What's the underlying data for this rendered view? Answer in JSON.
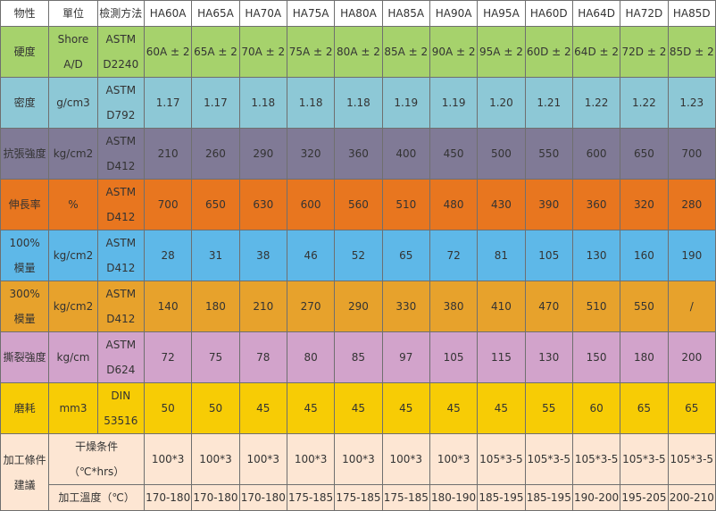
{
  "header": {
    "property": "物性",
    "unit": "單位",
    "method": "檢測方法",
    "grades": [
      "HA60A",
      "HA65A",
      "HA70A",
      "HA75A",
      "HA80A",
      "HA85A",
      "HA90A",
      "HA95A",
      "HA60D",
      "HA64D",
      "HA72D",
      "HA85D"
    ]
  },
  "rows": [
    {
      "property": [
        "硬度"
      ],
      "unit": [
        "Shore",
        "A/D"
      ],
      "method": [
        "ASTM",
        "D2240"
      ],
      "values": [
        "60A ± 2",
        "65A ± 2",
        "70A ± 2",
        "75A ± 2",
        "80A ± 2",
        "85A ± 2",
        "90A ± 2",
        "95A ± 2",
        "60D ± 2",
        "64D ± 2",
        "72D ± 2",
        "85D ± 2"
      ]
    },
    {
      "property": [
        "密度"
      ],
      "unit": [
        "g/cm3"
      ],
      "method": [
        "ASTM",
        "D792"
      ],
      "values": [
        "1.17",
        "1.17",
        "1.18",
        "1.18",
        "1.18",
        "1.19",
        "1.19",
        "1.20",
        "1.21",
        "1.22",
        "1.22",
        "1.23"
      ]
    },
    {
      "property": [
        "抗張強度"
      ],
      "unit": [
        "kg/cm2"
      ],
      "method": [
        "ASTM",
        "D412"
      ],
      "values": [
        "210",
        "260",
        "290",
        "320",
        "360",
        "400",
        "450",
        "500",
        "550",
        "600",
        "650",
        "700"
      ]
    },
    {
      "property": [
        "伸長率"
      ],
      "unit": [
        "%"
      ],
      "method": [
        "ASTM",
        "D412"
      ],
      "values": [
        "700",
        "650",
        "630",
        "600",
        "560",
        "510",
        "480",
        "430",
        "390",
        "360",
        "320",
        "280"
      ]
    },
    {
      "property": [
        "100%",
        "模量"
      ],
      "unit": [
        "kg/cm2"
      ],
      "method": [
        "ASTM",
        "D412"
      ],
      "values": [
        "28",
        "31",
        "38",
        "46",
        "52",
        "65",
        "72",
        "81",
        "105",
        "130",
        "160",
        "190"
      ]
    },
    {
      "property": [
        "300%",
        "模量"
      ],
      "unit": [
        "kg/cm2"
      ],
      "method": [
        "ASTM",
        "D412"
      ],
      "values": [
        "140",
        "180",
        "210",
        "270",
        "290",
        "330",
        "380",
        "410",
        "470",
        "510",
        "550",
        "/"
      ]
    },
    {
      "property": [
        "撕裂強度"
      ],
      "unit": [
        "kg/cm"
      ],
      "method": [
        "ASTM",
        "D624"
      ],
      "values": [
        "72",
        "75",
        "78",
        "80",
        "85",
        "97",
        "105",
        "115",
        "130",
        "150",
        "180",
        "200"
      ]
    },
    {
      "property": [
        "磨耗"
      ],
      "unit": [
        "mm3"
      ],
      "method": [
        "DIN",
        "53516"
      ],
      "values": [
        "50",
        "50",
        "45",
        "45",
        "45",
        "45",
        "45",
        "45",
        "55",
        "60",
        "65",
        "65"
      ]
    }
  ],
  "processing": {
    "label": [
      "加工條件",
      "建議"
    ],
    "drying": {
      "label": [
        "干燥条件",
        "（℃*hrs）"
      ],
      "values": [
        "100*3",
        "100*3",
        "100*3",
        "100*3",
        "100*3",
        "100*3",
        "100*3",
        "105*3-5",
        "105*3-5",
        "105*3-5",
        "105*3-5",
        "105*3-5"
      ]
    },
    "temperature": {
      "label": "加工溫度（℃）",
      "values": [
        "170-180",
        "170-180",
        "170-180",
        "175-185",
        "175-185",
        "175-185",
        "180-190",
        "185-195",
        "185-195",
        "190-200",
        "195-205",
        "200-210"
      ]
    }
  }
}
